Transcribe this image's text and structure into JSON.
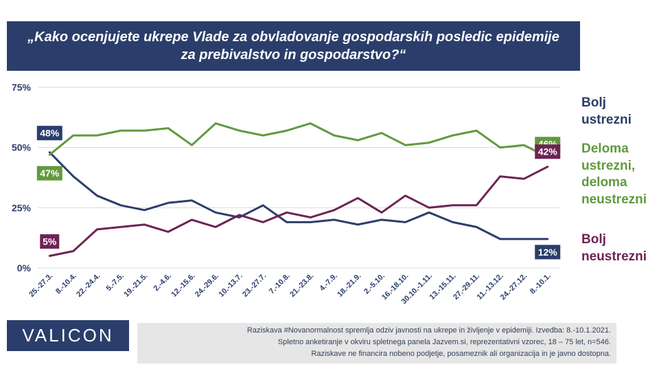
{
  "title": {
    "line1": "„Kako ocenjujete ukrepe Vlade za obvladovanje gospodarskih posledic epidemije",
    "line2": "za prebivalstvo in gospodarstvo?“"
  },
  "colors": {
    "navy": "#2b3e6b",
    "green": "#62993e",
    "maroon": "#6e2354",
    "grid": "#d9d9d9",
    "footer_bg": "#e6e6e6"
  },
  "chart_data": {
    "type": "line",
    "categories": [
      "25.-27.3.",
      "8.-10.4.",
      "22.-24.4.",
      "5.-7.5.",
      "19.-21.5.",
      "2.-4.6.",
      "12.-15.6.",
      "24.-29.6.",
      "10.-13.7.",
      "23.-27.7.",
      "7.-10.8.",
      "21.-23.8.",
      "4.-7.9.",
      "18.-21.9.",
      "2.-5.10.",
      "16.-18.10.",
      "30.10.-1.11.",
      "13.-15.11.",
      "27.-29.11.",
      "11.-13.12.",
      "24.-27.12.",
      "8.-10.1."
    ],
    "y_ticks": [
      "0%",
      "25%",
      "50%",
      "75%"
    ],
    "ylim": [
      0,
      75
    ],
    "grid": true,
    "legend_position": "right",
    "series": [
      {
        "name_lines": [
          "Bolj",
          "ustrezni"
        ],
        "color": "#2b3e6b",
        "values": [
          48,
          38,
          30,
          26,
          24,
          27,
          28,
          23,
          21,
          26,
          19,
          19,
          20,
          18,
          20,
          19,
          23,
          19,
          17,
          12,
          12,
          12
        ],
        "first_label": "48%",
        "last_label": "12%"
      },
      {
        "name_lines": [
          "Deloma",
          "ustrezni,",
          "deloma",
          "neustrezni"
        ],
        "color": "#62993e",
        "values": [
          47,
          55,
          55,
          57,
          57,
          58,
          51,
          60,
          57,
          55,
          57,
          60,
          55,
          53,
          56,
          51,
          52,
          55,
          57,
          50,
          51,
          46
        ],
        "first_label": "47%",
        "last_label": "46%"
      },
      {
        "name_lines": [
          "Bolj",
          "neustrezni"
        ],
        "color": "#6e2354",
        "values": [
          5,
          7,
          16,
          17,
          18,
          15,
          20,
          17,
          22,
          19,
          23,
          21,
          24,
          29,
          23,
          30,
          25,
          26,
          26,
          38,
          37,
          42
        ],
        "first_label": "5%",
        "last_label": "42%"
      }
    ]
  },
  "logo": "VALICON",
  "footer": {
    "line1": "Raziskava #Novanormalnost spremlja odziv javnosti na ukrepe in življenje v epidemiji. Izvedba: 8.-10.1.2021.",
    "line2": "Spletno anketiranje v okviru spletnega panela Jazvem.si, reprezentativni vzorec, 18 – 75 let, n=546.",
    "line3": "Raziskave ne financira nobeno podjetje, posameznik ali organizacija in je javno dostopna."
  }
}
